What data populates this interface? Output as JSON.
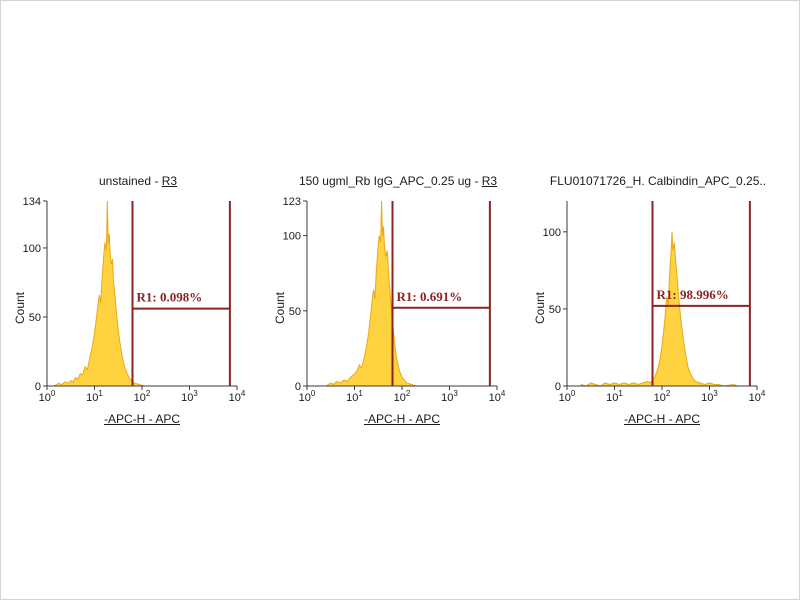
{
  "colors": {
    "histogram_fill": "#FFD23F",
    "histogram_stroke": "#E8A917",
    "gate": "#8B2323",
    "axis": "#3a3a3a",
    "text": "#1a1a1a"
  },
  "panels": [
    {
      "title_prefix": "unstained - ",
      "title_link": "R3",
      "ylabel": "Count",
      "xlabel": "-APC-H - APC",
      "gate_label": "R1: 0.098%"
    },
    {
      "title_prefix": "150 ugml_Rb IgG_APC_0.25 ug - ",
      "title_link": "R3",
      "ylabel": "Count",
      "xlabel": "-APC-H - APC",
      "gate_label": "R1: 0.691%"
    },
    {
      "title_prefix": "FLU01071726_H. Calbindin_APC_0.25..",
      "title_link": "",
      "ylabel": "Count",
      "xlabel": "-APC-H - APC",
      "gate_label": "R1: 98.996%"
    }
  ],
  "chart_data": [
    {
      "type": "area",
      "title": "unstained - R3",
      "xlabel": "-APC-H - APC",
      "ylabel": "Count",
      "x_scale": "log10",
      "x_ticks_exponents": [
        0,
        1,
        2,
        3,
        4
      ],
      "ylim": [
        0,
        134
      ],
      "y_ticks": [
        0,
        50,
        100,
        134
      ],
      "gate": {
        "name": "R1",
        "percent": 0.098,
        "x_start_decade": 1.8,
        "x_end_decade": 3.85,
        "line_count": 56
      },
      "points": [
        [
          0.15,
          0
        ],
        [
          0.25,
          2
        ],
        [
          0.3,
          1
        ],
        [
          0.38,
          3
        ],
        [
          0.45,
          2
        ],
        [
          0.5,
          4
        ],
        [
          0.55,
          3
        ],
        [
          0.6,
          6
        ],
        [
          0.65,
          5
        ],
        [
          0.7,
          9
        ],
        [
          0.75,
          8
        ],
        [
          0.8,
          14
        ],
        [
          0.85,
          12
        ],
        [
          0.9,
          20
        ],
        [
          0.95,
          28
        ],
        [
          1.0,
          38
        ],
        [
          1.05,
          52
        ],
        [
          1.1,
          66
        ],
        [
          1.13,
          60
        ],
        [
          1.16,
          78
        ],
        [
          1.19,
          92
        ],
        [
          1.22,
          104
        ],
        [
          1.25,
          98
        ],
        [
          1.27,
          134
        ],
        [
          1.29,
          103
        ],
        [
          1.31,
          110
        ],
        [
          1.33,
          96
        ],
        [
          1.35,
          88
        ],
        [
          1.38,
          92
        ],
        [
          1.4,
          76
        ],
        [
          1.43,
          66
        ],
        [
          1.46,
          54
        ],
        [
          1.5,
          40
        ],
        [
          1.55,
          28
        ],
        [
          1.6,
          18
        ],
        [
          1.65,
          12
        ],
        [
          1.7,
          8
        ],
        [
          1.75,
          5
        ],
        [
          1.8,
          3
        ],
        [
          1.85,
          2
        ],
        [
          1.95,
          1
        ],
        [
          2.05,
          0
        ]
      ]
    },
    {
      "type": "area",
      "title": "150 ugml_Rb IgG_APC_0.25 ug - R3",
      "xlabel": "-APC-H - APC",
      "ylabel": "Count",
      "x_scale": "log10",
      "x_ticks_exponents": [
        0,
        1,
        2,
        3,
        4
      ],
      "ylim": [
        0,
        123
      ],
      "y_ticks": [
        0,
        50,
        100,
        123
      ],
      "gate": {
        "name": "R1",
        "percent": 0.691,
        "x_start_decade": 1.8,
        "x_end_decade": 3.85,
        "line_count": 52
      },
      "points": [
        [
          0.4,
          0
        ],
        [
          0.5,
          2
        ],
        [
          0.55,
          1
        ],
        [
          0.62,
          3
        ],
        [
          0.7,
          2
        ],
        [
          0.78,
          4
        ],
        [
          0.85,
          3
        ],
        [
          0.92,
          6
        ],
        [
          1.0,
          8
        ],
        [
          1.05,
          10
        ],
        [
          1.1,
          14
        ],
        [
          1.15,
          12
        ],
        [
          1.2,
          18
        ],
        [
          1.25,
          26
        ],
        [
          1.3,
          36
        ],
        [
          1.35,
          50
        ],
        [
          1.4,
          64
        ],
        [
          1.43,
          58
        ],
        [
          1.46,
          76
        ],
        [
          1.49,
          90
        ],
        [
          1.52,
          100
        ],
        [
          1.55,
          96
        ],
        [
          1.57,
          123
        ],
        [
          1.59,
          100
        ],
        [
          1.61,
          106
        ],
        [
          1.63,
          94
        ],
        [
          1.66,
          86
        ],
        [
          1.69,
          90
        ],
        [
          1.72,
          74
        ],
        [
          1.75,
          62
        ],
        [
          1.78,
          50
        ],
        [
          1.82,
          36
        ],
        [
          1.86,
          24
        ],
        [
          1.9,
          16
        ],
        [
          1.95,
          10
        ],
        [
          2.0,
          6
        ],
        [
          2.05,
          4
        ],
        [
          2.1,
          2
        ],
        [
          2.2,
          1
        ],
        [
          2.3,
          0
        ]
      ]
    },
    {
      "type": "area",
      "title": "FLU01071726_H. Calbindin_APC_0.25..",
      "xlabel": "-APC-H - APC",
      "ylabel": "Count",
      "x_scale": "log10",
      "x_ticks_exponents": [
        0,
        1,
        2,
        3,
        4
      ],
      "ylim": [
        0,
        120
      ],
      "y_ticks": [
        0,
        50,
        100
      ],
      "gate": {
        "name": "R1",
        "percent": 98.996,
        "x_start_decade": 1.8,
        "x_end_decade": 3.85,
        "line_count": 52
      },
      "points": [
        [
          0.3,
          1
        ],
        [
          0.4,
          0
        ],
        [
          0.5,
          2
        ],
        [
          0.6,
          1
        ],
        [
          0.7,
          0
        ],
        [
          0.8,
          2
        ],
        [
          0.9,
          1
        ],
        [
          1.0,
          2
        ],
        [
          1.1,
          1
        ],
        [
          1.2,
          2
        ],
        [
          1.3,
          1
        ],
        [
          1.4,
          2
        ],
        [
          1.5,
          1
        ],
        [
          1.6,
          2
        ],
        [
          1.7,
          3
        ],
        [
          1.75,
          2
        ],
        [
          1.8,
          4
        ],
        [
          1.85,
          6
        ],
        [
          1.9,
          10
        ],
        [
          1.95,
          16
        ],
        [
          2.0,
          26
        ],
        [
          2.05,
          40
        ],
        [
          2.1,
          58
        ],
        [
          2.13,
          52
        ],
        [
          2.16,
          72
        ],
        [
          2.19,
          86
        ],
        [
          2.21,
          100
        ],
        [
          2.23,
          88
        ],
        [
          2.26,
          93
        ],
        [
          2.29,
          80
        ],
        [
          2.32,
          70
        ],
        [
          2.35,
          58
        ],
        [
          2.4,
          42
        ],
        [
          2.45,
          30
        ],
        [
          2.5,
          20
        ],
        [
          2.55,
          12
        ],
        [
          2.6,
          8
        ],
        [
          2.65,
          5
        ],
        [
          2.7,
          3
        ],
        [
          2.8,
          2
        ],
        [
          2.9,
          1
        ],
        [
          3.0,
          2
        ],
        [
          3.1,
          1
        ],
        [
          3.2,
          1
        ],
        [
          3.3,
          0
        ],
        [
          3.5,
          1
        ],
        [
          3.6,
          0
        ]
      ]
    }
  ]
}
